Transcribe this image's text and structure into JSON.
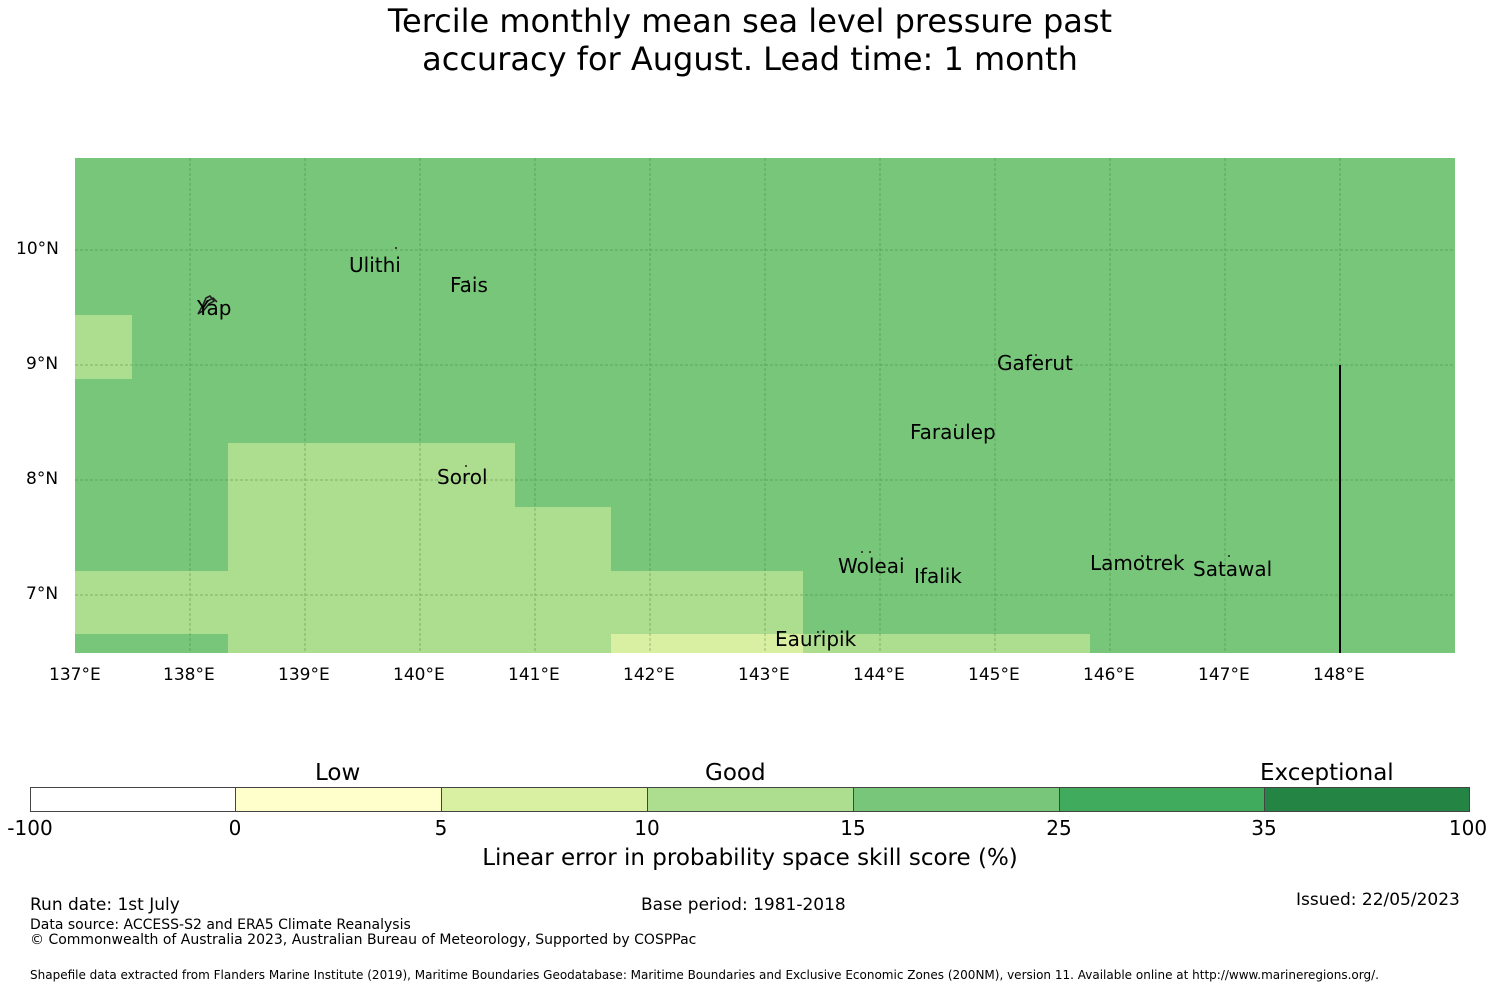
{
  "title": {
    "line1": "Tercile monthly mean sea level pressure past",
    "line2": "accuracy for August. Lead time: 1 month"
  },
  "map": {
    "lat_labels": [
      "10°N",
      "9°N",
      "8°N",
      "7°N"
    ],
    "lon_labels": [
      "137°E",
      "138°E",
      "139°E",
      "140°E",
      "141°E",
      "142°E",
      "143°E",
      "144°E",
      "145°E",
      "146°E",
      "147°E",
      "148°E"
    ],
    "places": [
      "Ulithi",
      "Fais",
      "Yap",
      "Gaferut",
      "Faraulep",
      "Sorol",
      "Woleai",
      "Ifalik",
      "Lamotrek",
      "Satawal",
      "Eauripik"
    ],
    "colors": {
      "skill_15_25": "#78c679",
      "skill_10_15": "#addd8e",
      "skill_5_10": "#d9f0a3"
    }
  },
  "colorbar": {
    "categories": [
      "Low",
      "Good",
      "Exceptional"
    ],
    "ticks": [
      "-100",
      "0",
      "5",
      "10",
      "15",
      "25",
      "35",
      "100"
    ],
    "colors": [
      "#ffffff",
      "#ffffcc",
      "#d9f0a3",
      "#addd8e",
      "#78c679",
      "#41ab5d",
      "#238443"
    ],
    "label": "Linear error in probability space skill score (%)"
  },
  "footer": {
    "run_date": "Run date: 1st July",
    "base_period": "Base period: 1981-2018",
    "issued": "Issued: 22/05/2023",
    "data_source": "Data source: ACCESS-S2 and ERA5 Climate Reanalysis",
    "copyright": "© Commonwealth of Australia 2023, Australian Bureau of Meteorology, Supported by COSPPac",
    "shapefile": "Shapefile data extracted from Flanders Marine Institute (2019), Maritime Boundaries Geodatabase: Maritime Boundaries and Exclusive Economic Zones (200NM), version 11. Available online at http://www.marineregions.org/."
  }
}
